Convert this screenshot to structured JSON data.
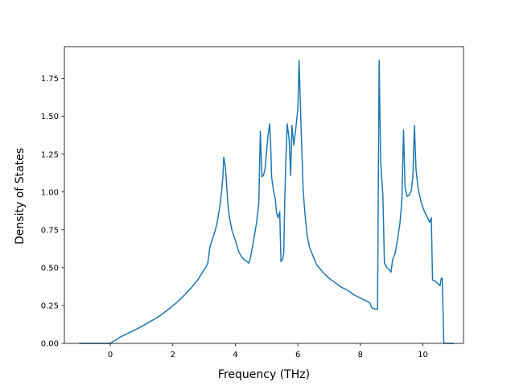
{
  "chart_data": {
    "type": "line",
    "title": "",
    "xlabel": "Frequency (THz)",
    "ylabel": "Density of States",
    "xlim": [
      -1.47,
      11.3
    ],
    "ylim": [
      0,
      1.96
    ],
    "xticks": [
      0,
      2,
      4,
      6,
      8,
      10
    ],
    "xtick_labels": [
      "0",
      "2",
      "4",
      "6",
      "8",
      "10"
    ],
    "yticks": [
      0,
      0.25,
      0.5,
      0.75,
      1.0,
      1.25,
      1.5,
      1.75
    ],
    "ytick_labels": [
      "0.00",
      "0.25",
      "0.50",
      "0.75",
      "1.00",
      "1.25",
      "1.50",
      "1.75"
    ],
    "grid": false,
    "series": [
      {
        "color": "#1f77b4",
        "points": [
          [
            -1.0,
            0.0
          ],
          [
            0.0,
            0.0
          ],
          [
            0.3,
            0.04
          ],
          [
            0.6,
            0.07
          ],
          [
            0.9,
            0.1
          ],
          [
            1.2,
            0.135
          ],
          [
            1.5,
            0.17
          ],
          [
            1.8,
            0.215
          ],
          [
            2.1,
            0.265
          ],
          [
            2.4,
            0.325
          ],
          [
            2.6,
            0.37
          ],
          [
            2.8,
            0.42
          ],
          [
            2.95,
            0.47
          ],
          [
            3.05,
            0.5
          ],
          [
            3.12,
            0.53
          ],
          [
            3.15,
            0.58
          ],
          [
            3.18,
            0.63
          ],
          [
            3.25,
            0.68
          ],
          [
            3.35,
            0.74
          ],
          [
            3.42,
            0.8
          ],
          [
            3.5,
            0.9
          ],
          [
            3.56,
            1.0
          ],
          [
            3.6,
            1.1
          ],
          [
            3.63,
            1.23
          ],
          [
            3.68,
            1.17
          ],
          [
            3.72,
            1.05
          ],
          [
            3.76,
            0.92
          ],
          [
            3.82,
            0.82
          ],
          [
            3.9,
            0.74
          ],
          [
            4.0,
            0.68
          ],
          [
            4.1,
            0.61
          ],
          [
            4.2,
            0.57
          ],
          [
            4.3,
            0.55
          ],
          [
            4.38,
            0.54
          ],
          [
            4.43,
            0.53
          ],
          [
            4.48,
            0.56
          ],
          [
            4.53,
            0.62
          ],
          [
            4.6,
            0.7
          ],
          [
            4.68,
            0.8
          ],
          [
            4.75,
            0.92
          ],
          [
            4.8,
            1.4
          ],
          [
            4.85,
            1.1
          ],
          [
            4.9,
            1.11
          ],
          [
            4.95,
            1.15
          ],
          [
            5.0,
            1.27
          ],
          [
            5.05,
            1.38
          ],
          [
            5.1,
            1.45
          ],
          [
            5.13,
            1.32
          ],
          [
            5.16,
            1.1
          ],
          [
            5.22,
            1.01
          ],
          [
            5.28,
            0.95
          ],
          [
            5.32,
            0.86
          ],
          [
            5.37,
            0.83
          ],
          [
            5.42,
            0.87
          ],
          [
            5.46,
            0.54
          ],
          [
            5.52,
            0.56
          ],
          [
            5.55,
            0.6
          ],
          [
            5.58,
            0.93
          ],
          [
            5.62,
            1.23
          ],
          [
            5.66,
            1.45
          ],
          [
            5.72,
            1.35
          ],
          [
            5.77,
            1.11
          ],
          [
            5.81,
            1.44
          ],
          [
            5.87,
            1.31
          ],
          [
            5.93,
            1.41
          ],
          [
            6.0,
            1.55
          ],
          [
            6.04,
            1.87
          ],
          [
            6.1,
            1.45
          ],
          [
            6.17,
            1.01
          ],
          [
            6.23,
            0.85
          ],
          [
            6.3,
            0.71
          ],
          [
            6.38,
            0.63
          ],
          [
            6.48,
            0.58
          ],
          [
            6.6,
            0.52
          ],
          [
            6.8,
            0.47
          ],
          [
            7.0,
            0.43
          ],
          [
            7.2,
            0.4
          ],
          [
            7.4,
            0.37
          ],
          [
            7.6,
            0.35
          ],
          [
            7.8,
            0.32
          ],
          [
            8.0,
            0.3
          ],
          [
            8.2,
            0.28
          ],
          [
            8.3,
            0.27
          ],
          [
            8.35,
            0.24
          ],
          [
            8.4,
            0.23
          ],
          [
            8.55,
            0.225
          ],
          [
            8.6,
            1.87
          ],
          [
            8.65,
            1.2
          ],
          [
            8.72,
            0.98
          ],
          [
            8.77,
            0.53
          ],
          [
            8.85,
            0.5
          ],
          [
            8.95,
            0.48
          ],
          [
            8.98,
            0.47
          ],
          [
            9.03,
            0.55
          ],
          [
            9.12,
            0.6
          ],
          [
            9.2,
            0.7
          ],
          [
            9.27,
            0.8
          ],
          [
            9.33,
            0.95
          ],
          [
            9.38,
            1.41
          ],
          [
            9.43,
            1.03
          ],
          [
            9.5,
            0.97
          ],
          [
            9.57,
            0.98
          ],
          [
            9.63,
            1.01
          ],
          [
            9.68,
            1.1
          ],
          [
            9.73,
            1.44
          ],
          [
            9.78,
            1.15
          ],
          [
            9.85,
            1.02
          ],
          [
            9.95,
            0.93
          ],
          [
            10.05,
            0.87
          ],
          [
            10.15,
            0.83
          ],
          [
            10.22,
            0.8
          ],
          [
            10.27,
            0.83
          ],
          [
            10.31,
            0.42
          ],
          [
            10.4,
            0.41
          ],
          [
            10.5,
            0.39
          ],
          [
            10.55,
            0.38
          ],
          [
            10.59,
            0.43
          ],
          [
            10.62,
            0.43
          ],
          [
            10.67,
            0.0
          ],
          [
            11.0,
            0.0
          ]
        ]
      }
    ]
  }
}
